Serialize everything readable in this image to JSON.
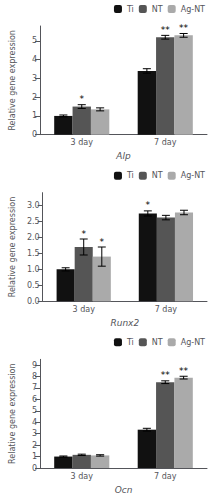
{
  "chart_data": [
    {
      "type": "bar",
      "xlabel": "Alp",
      "ylabel": "Relative gene expression",
      "categories": [
        "3 day",
        "7 day"
      ],
      "series": [
        {
          "name": "Ti",
          "color": "#111111",
          "values": [
            1.0,
            3.4
          ],
          "errors": [
            0.05,
            0.12
          ]
        },
        {
          "name": "NT",
          "color": "#555555",
          "values": [
            1.5,
            5.2
          ],
          "errors": [
            0.1,
            0.1
          ]
        },
        {
          "name": "Ag-NT",
          "color": "#aaaaaa",
          "values": [
            1.35,
            5.3
          ],
          "errors": [
            0.08,
            0.1
          ]
        }
      ],
      "annotations": [
        {
          "series": "NT",
          "category": "3 day",
          "text": "*"
        },
        {
          "series": "NT",
          "category": "7 day",
          "text": "**"
        },
        {
          "series": "Ag-NT",
          "category": "7 day",
          "text": "**"
        }
      ],
      "ylim": [
        0,
        5.8
      ],
      "yticks": [
        0,
        1,
        2,
        3,
        4,
        5
      ],
      "grid": false,
      "legend": "upper right"
    },
    {
      "type": "bar",
      "xlabel": "Runx2",
      "ylabel": "Relative gene expression",
      "categories": [
        "3 day",
        "7 day"
      ],
      "series": [
        {
          "name": "Ti",
          "color": "#111111",
          "values": [
            1.0,
            2.75
          ],
          "errors": [
            0.05,
            0.08
          ]
        },
        {
          "name": "NT",
          "color": "#555555",
          "values": [
            1.7,
            2.62
          ],
          "errors": [
            0.25,
            0.07
          ]
        },
        {
          "name": "Ag-NT",
          "color": "#aaaaaa",
          "values": [
            1.4,
            2.78
          ],
          "errors": [
            0.3,
            0.07
          ]
        }
      ],
      "annotations": [
        {
          "series": "NT",
          "category": "3 day",
          "text": "*"
        },
        {
          "series": "Ag-NT",
          "category": "3 day",
          "text": "*"
        },
        {
          "series": "Ti",
          "category": "7 day",
          "text": "*"
        }
      ],
      "ylim": [
        0,
        3.4
      ],
      "yticks": [
        {
          "value": 0.0,
          "label": "0.0"
        },
        0.5,
        {
          "value": 1.0,
          "label": "1.0"
        },
        1.5,
        {
          "value": 2.0,
          "label": "2.0"
        },
        2.5,
        {
          "value": 3.0,
          "label": "3.0"
        }
      ],
      "grid": false,
      "legend": "upper right"
    },
    {
      "type": "bar",
      "xlabel": "Ocn",
      "ylabel": "Relative gene expression",
      "categories": [
        "3 day",
        "7 day"
      ],
      "series": [
        {
          "name": "Ti",
          "color": "#111111",
          "values": [
            1.0,
            3.35
          ],
          "errors": [
            0.05,
            0.12
          ]
        },
        {
          "name": "NT",
          "color": "#555555",
          "values": [
            1.15,
            7.5
          ],
          "errors": [
            0.06,
            0.12
          ]
        },
        {
          "name": "Ag-NT",
          "color": "#aaaaaa",
          "values": [
            1.1,
            7.9
          ],
          "errors": [
            0.06,
            0.12
          ]
        }
      ],
      "annotations": [
        {
          "series": "NT",
          "category": "7 day",
          "text": "**"
        },
        {
          "series": "Ag-NT",
          "category": "7 day",
          "text": "**"
        }
      ],
      "ylim": [
        0,
        9.5
      ],
      "yticks": [
        0,
        1,
        2,
        3,
        4,
        5,
        6,
        7,
        8,
        9
      ],
      "grid": false,
      "legend": "upper right"
    }
  ]
}
